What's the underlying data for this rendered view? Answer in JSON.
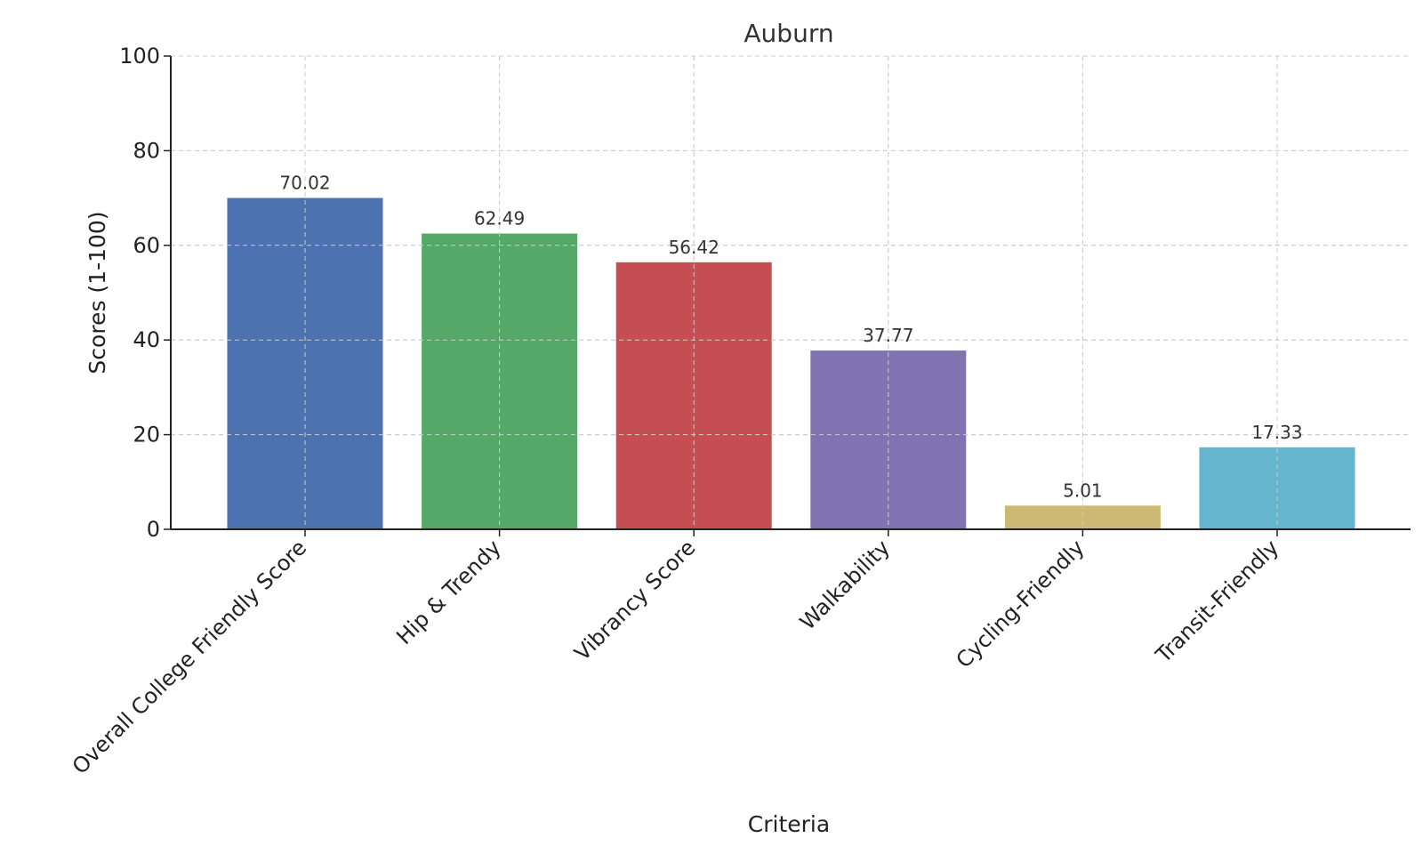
{
  "chart_data": {
    "type": "bar",
    "title": "Auburn",
    "xlabel": "Criteria",
    "ylabel": "Scores (1-100)",
    "ylim": [
      0,
      100
    ],
    "yticks": [
      0,
      20,
      40,
      60,
      80,
      100
    ],
    "grid": true,
    "categories": [
      "Overall College Friendly Score",
      "Hip & Trendy",
      "Vibrancy Score",
      "Walkability",
      "Cycling-Friendly",
      "Transit-Friendly"
    ],
    "values": [
      70.02,
      62.49,
      56.42,
      37.77,
      5.01,
      17.33
    ],
    "value_labels": [
      "70.02",
      "62.49",
      "56.42",
      "37.77",
      "5.01",
      "17.33"
    ],
    "colors": [
      "#4c72b0",
      "#55a868",
      "#c44e52",
      "#8172b2",
      "#ccb974",
      "#64b5cd"
    ]
  }
}
